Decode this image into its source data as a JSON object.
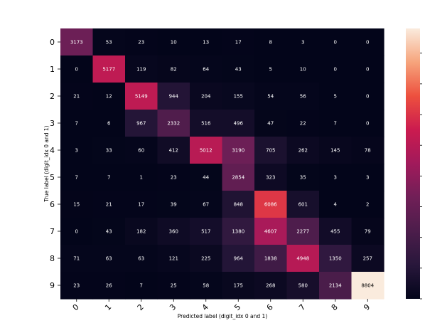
{
  "chart_data": {
    "type": "heatmap",
    "title": "",
    "xlabel": "Predicted label (digit_idx 0 and 1)",
    "ylabel": "True label (digit_idx 0 and 1)",
    "x_tick_labels": [
      "0",
      "1",
      "2",
      "3",
      "4",
      "5",
      "6",
      "7",
      "8",
      "9"
    ],
    "y_tick_labels": [
      "0",
      "1",
      "2",
      "3",
      "4",
      "5",
      "6",
      "7",
      "8",
      "9"
    ],
    "values": [
      [
        3173,
        53,
        23,
        10,
        13,
        17,
        8,
        3,
        0,
        0
      ],
      [
        0,
        5177,
        119,
        82,
        64,
        43,
        5,
        10,
        0,
        0
      ],
      [
        21,
        12,
        5149,
        944,
        204,
        155,
        54,
        56,
        5,
        0
      ],
      [
        7,
        6,
        967,
        2332,
        516,
        496,
        47,
        22,
        7,
        0
      ],
      [
        3,
        33,
        60,
        412,
        5012,
        3190,
        705,
        262,
        145,
        78
      ],
      [
        7,
        7,
        1,
        23,
        44,
        2854,
        323,
        35,
        3,
        3
      ],
      [
        15,
        21,
        17,
        39,
        67,
        848,
        6086,
        601,
        4,
        2
      ],
      [
        0,
        43,
        182,
        360,
        517,
        1380,
        4607,
        2277,
        455,
        79
      ],
      [
        71,
        63,
        63,
        121,
        225,
        964,
        1838,
        4948,
        1350,
        257
      ],
      [
        23,
        26,
        7,
        25,
        58,
        175,
        268,
        580,
        2134,
        8804
      ]
    ],
    "vmin": 0,
    "vmax": 8804,
    "colormap": "rocket",
    "colorbar_ticks": [
      0,
      1000,
      2000,
      3000,
      4000,
      5000,
      6000,
      7000,
      8000
    ],
    "colorbar_tick_labels_visible": false,
    "x_tick_rotation_deg": 45,
    "grid": false
  }
}
